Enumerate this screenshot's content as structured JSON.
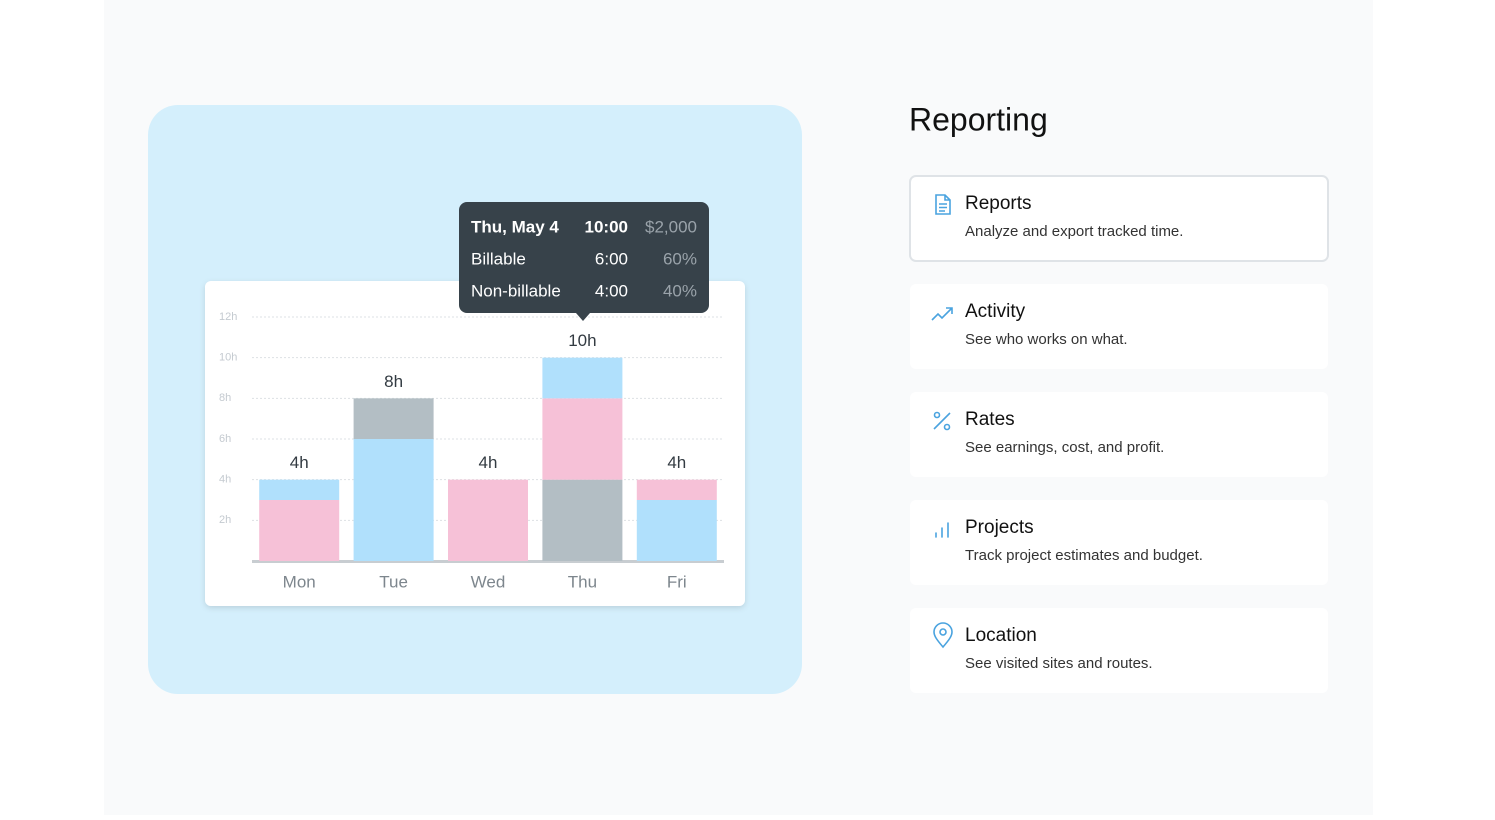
{
  "chart_data": {
    "type": "bar",
    "stacked": true,
    "categories": [
      "Mon",
      "Tue",
      "Wed",
      "Thu",
      "Fri"
    ],
    "bars": [
      {
        "segments": [
          {
            "color": "#f6c1d7",
            "value": 3
          },
          {
            "color": "#b0e0fc",
            "value": 1
          }
        ]
      },
      {
        "segments": [
          {
            "color": "#b0e0fc",
            "value": 6
          },
          {
            "color": "#b3bec4",
            "value": 2
          }
        ]
      },
      {
        "segments": [
          {
            "color": "#f6c1d7",
            "value": 4
          }
        ]
      },
      {
        "segments": [
          {
            "color": "#b3bec4",
            "value": 4
          },
          {
            "color": "#f6c1d7",
            "value": 4
          },
          {
            "color": "#b0e0fc",
            "value": 2
          }
        ]
      },
      {
        "segments": [
          {
            "color": "#b0e0fc",
            "value": 3
          },
          {
            "color": "#f6c1d7",
            "value": 1
          }
        ]
      }
    ],
    "value_labels": [
      "4h",
      "8h",
      "4h",
      "10h",
      "4h"
    ],
    "ylim": [
      0,
      12
    ],
    "yticks": [
      {
        "value": 2,
        "label": "2h"
      },
      {
        "value": 4,
        "label": "4h"
      },
      {
        "value": 6,
        "label": "6h"
      },
      {
        "value": 8,
        "label": "8h"
      },
      {
        "value": 10,
        "label": "10h"
      },
      {
        "value": 12,
        "label": "12h"
      }
    ],
    "grid": true
  },
  "tooltip": {
    "rows": [
      [
        "Thu, May 4",
        "10:00",
        "$2,000"
      ],
      [
        "Billable",
        "6:00",
        "60%"
      ],
      [
        "Non-billable",
        "4:00",
        "40%"
      ]
    ]
  },
  "section": {
    "title": "Reporting",
    "items": [
      {
        "title": "Reports",
        "description": "Analyze and export tracked time."
      },
      {
        "title": "Activity",
        "description": "See who works on what."
      },
      {
        "title": "Rates",
        "description": "See earnings, cost, and profit."
      },
      {
        "title": "Projects",
        "description": "Track project estimates and budget."
      },
      {
        "title": "Location",
        "description": "See visited sites and routes."
      }
    ]
  }
}
